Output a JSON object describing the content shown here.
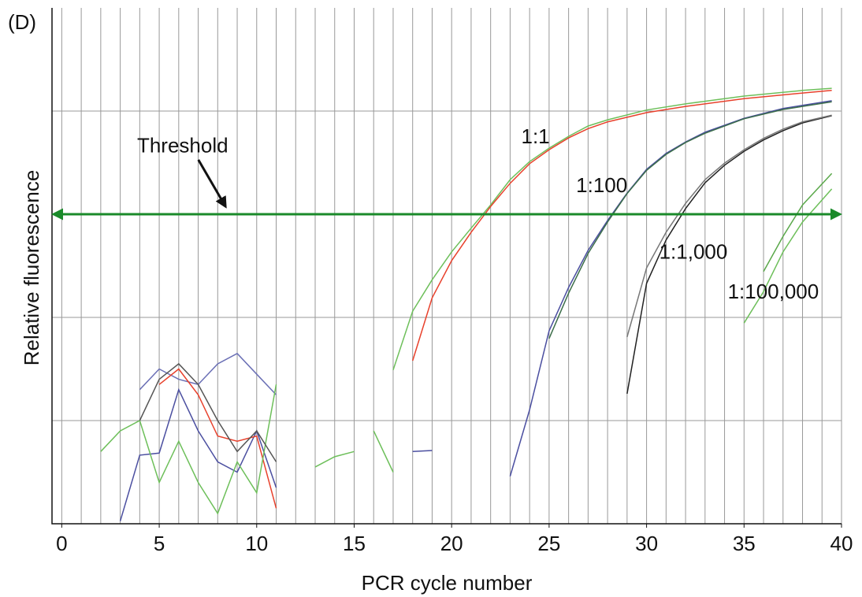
{
  "chart_data": {
    "type": "line",
    "panel_label": "(D)",
    "x_label": "PCR cycle number",
    "y_label": "Relative fluorescence",
    "xlim": [
      -0.5,
      40
    ],
    "xticks": [
      0,
      5,
      10,
      15,
      20,
      25,
      30,
      35,
      40
    ],
    "x_grid_step": 1,
    "ylim": [
      0,
      100
    ],
    "y_grid": [
      20,
      40,
      80
    ],
    "threshold": {
      "label": "Threshold",
      "value": 60,
      "color": "#1a8a2a",
      "label_x": 6.2,
      "label_y": 73,
      "arrow_x": 8.4,
      "arrow_y": 61.5
    },
    "series": [
      {
        "color": "#4b4fa0",
        "x": [
          3,
          4,
          5,
          6,
          7,
          8,
          9,
          10,
          11
        ],
        "values": [
          0.5,
          13.3,
          13.7,
          26,
          18,
          12,
          10,
          18,
          7
        ]
      },
      {
        "color": "#6a6fb5",
        "x": [
          4,
          5,
          6,
          7,
          8,
          9,
          10,
          11
        ],
        "values": [
          26,
          30,
          28,
          27,
          31,
          33,
          29,
          25
        ]
      },
      {
        "color": "#e8412c",
        "x": [
          5,
          6,
          7,
          8,
          9,
          10,
          11
        ],
        "values": [
          27,
          30,
          25,
          17,
          16,
          17,
          3
        ]
      },
      {
        "color": "#6dbf5a",
        "x": [
          2,
          3,
          4,
          5,
          6,
          7,
          8,
          9,
          10,
          11
        ],
        "values": [
          14,
          18,
          20,
          8,
          16,
          8,
          2,
          12,
          6,
          27
        ]
      },
      {
        "color": "#555555",
        "x": [
          4,
          5,
          6,
          7,
          8,
          9,
          10,
          11
        ],
        "values": [
          20,
          28,
          31,
          27,
          20,
          14,
          18,
          12
        ]
      },
      {
        "color": "#6dbf5a",
        "x": [
          13,
          14,
          15
        ],
        "values": [
          11,
          13,
          14
        ]
      },
      {
        "color": "#6dbf5a",
        "x": [
          16,
          17
        ],
        "values": [
          18,
          10
        ]
      },
      {
        "color": "#4b4fa0",
        "x": [
          18,
          19
        ],
        "values": [
          14,
          14.2
        ]
      },
      {
        "color": "#6dbf5a",
        "x": [
          17,
          18,
          19,
          20,
          21,
          22,
          23,
          24,
          25,
          26,
          27,
          28,
          30,
          32,
          35,
          38,
          39.5
        ],
        "values": [
          29.8,
          41.2,
          47.3,
          52.7,
          57.3,
          61.8,
          66.7,
          70.2,
          72.8,
          75.1,
          77.1,
          78.3,
          80.2,
          81.4,
          82.9,
          84,
          84.4
        ]
      },
      {
        "color": "#e8412c",
        "x": [
          18,
          19,
          20,
          21,
          22,
          23,
          24,
          25,
          26,
          27,
          28,
          30,
          32,
          35,
          38,
          39.5
        ],
        "values": [
          31.6,
          43.8,
          51,
          56.5,
          61.5,
          66,
          69.8,
          72.5,
          74.8,
          76.6,
          77.9,
          79.7,
          80.9,
          82.4,
          83.5,
          84
        ]
      },
      {
        "color": "#4b4fa0",
        "x": [
          23,
          24,
          25,
          26,
          27,
          28,
          29,
          30,
          31,
          32,
          33,
          35,
          37,
          39.5
        ],
        "values": [
          9.2,
          22.1,
          37.4,
          45.8,
          53,
          58.8,
          64.1,
          68.7,
          71.8,
          74,
          75.9,
          78.6,
          80.5,
          82
        ]
      },
      {
        "color": "#3c6e4a",
        "x": [
          25,
          26,
          27,
          28,
          29,
          30,
          31,
          32,
          33,
          35,
          37,
          39.5
        ],
        "values": [
          35.9,
          44.7,
          52.4,
          58.5,
          64,
          68.5,
          71.6,
          73.9,
          75.7,
          78.5,
          80.3,
          81.8
        ]
      },
      {
        "color": "#222222",
        "x": [
          29,
          30,
          31,
          32,
          33,
          34,
          35,
          36,
          37,
          38,
          39.5
        ],
        "values": [
          25.2,
          46.6,
          55,
          61.1,
          66.1,
          69.5,
          72.2,
          74.4,
          76.2,
          77.7,
          79.1
        ]
      },
      {
        "color": "#777777",
        "x": [
          29,
          30,
          31,
          32,
          33,
          34,
          35,
          36,
          37,
          38,
          39.5
        ],
        "values": [
          36.2,
          49.6,
          56.5,
          62.1,
          66.7,
          69.9,
          72.5,
          74.7,
          76.5,
          77.9,
          79.2
        ]
      },
      {
        "color": "#6dbf5a",
        "x": [
          35,
          36,
          37,
          38,
          39.5
        ],
        "values": [
          38.9,
          45,
          52.7,
          58.5,
          64.9
        ]
      },
      {
        "color": "#5aa84a",
        "x": [
          36,
          37,
          38,
          39.5
        ],
        "values": [
          48.9,
          55.7,
          61.8,
          67.9
        ]
      }
    ],
    "annotations": [
      {
        "text": "1:1",
        "x": 24.3,
        "y": 74.8
      },
      {
        "text": "1:100",
        "x": 27.7,
        "y": 65.3
      },
      {
        "text": "1:1,000",
        "x": 32.4,
        "y": 52.4
      },
      {
        "text": "1:100,000",
        "x": 36.5,
        "y": 44.7
      }
    ]
  }
}
